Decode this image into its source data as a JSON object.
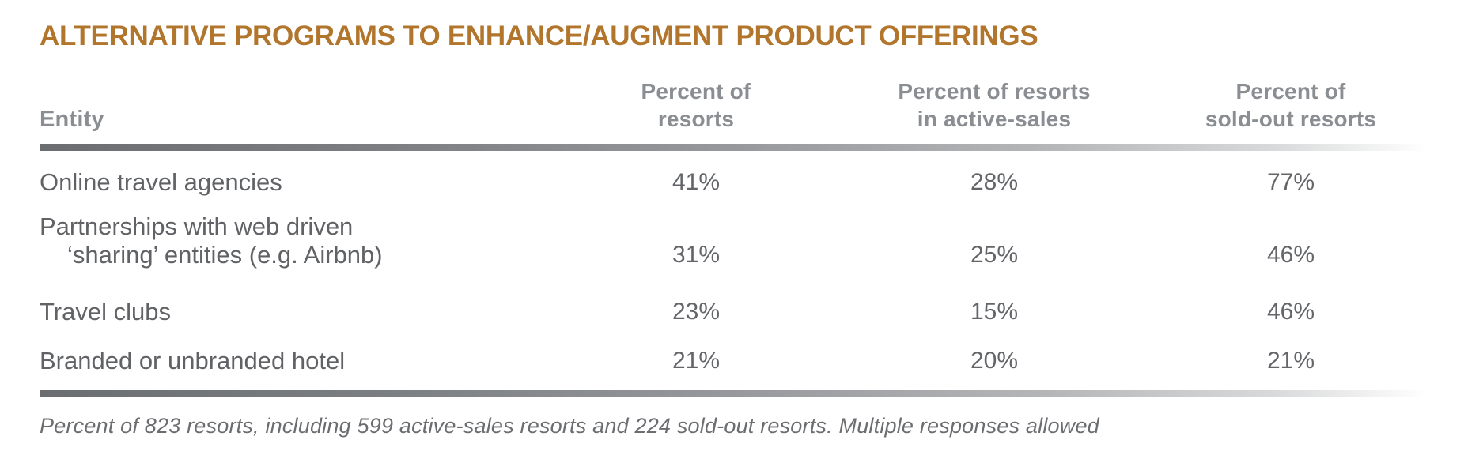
{
  "title": "ALTERNATIVE PROGRAMS TO ENHANCE/AUGMENT PRODUCT OFFERINGS",
  "colors": {
    "title_gold": "#b1752c",
    "header_gray": "#8a8d91",
    "body_gray": "#606265",
    "footnote_gray": "#6b6d70",
    "bar_gradient_start": "#6b6e71",
    "bar_gradient_end": "#ffffff"
  },
  "table": {
    "entity_header": "Entity",
    "col_headers": [
      {
        "line1": "Percent of",
        "line2": "resorts"
      },
      {
        "line1": "Percent of resorts",
        "line2": "in active-sales"
      },
      {
        "line1": "Percent of",
        "line2": "sold-out resorts"
      }
    ],
    "rows": [
      {
        "entity_line1": "Online travel agencies",
        "values": [
          "41%",
          "28%",
          "77%"
        ]
      },
      {
        "entity_line1": "Partnerships with web driven",
        "entity_line2": "‘sharing’ entities (e.g. Airbnb)",
        "values": [
          "31%",
          "25%",
          "46%"
        ]
      },
      {
        "entity_line1": "Travel clubs",
        "values": [
          "23%",
          "15%",
          "46%"
        ]
      },
      {
        "entity_line1": "Branded or unbranded hotel",
        "values": [
          "21%",
          "20%",
          "21%"
        ]
      }
    ]
  },
  "footnote": "Percent of 823 resorts, including 599 active-sales resorts and 224 sold-out resorts. Multiple responses allowed",
  "chart_data": {
    "type": "table",
    "title": "ALTERNATIVE PROGRAMS TO ENHANCE/AUGMENT PRODUCT OFFERINGS",
    "columns": [
      "Entity",
      "Percent of resorts",
      "Percent of resorts in active-sales",
      "Percent of sold-out resorts"
    ],
    "rows": [
      [
        "Online travel agencies",
        "41%",
        "28%",
        "77%"
      ],
      [
        "Partnerships with web driven ‘sharing’ entities (e.g. Airbnb)",
        "31%",
        "25%",
        "46%"
      ],
      [
        "Travel clubs",
        "23%",
        "15%",
        "46%"
      ],
      [
        "Branded or unbranded hotel",
        "21%",
        "20%",
        "21%"
      ]
    ],
    "sample_sizes": {
      "total_resorts": 823,
      "active_sales_resorts": 599,
      "sold_out_resorts": 224
    },
    "footnote": "Percent of 823 resorts, including 599 active-sales resorts and 224 sold-out resorts. Multiple responses allowed",
    "legend_position": "none",
    "grid": "off"
  }
}
